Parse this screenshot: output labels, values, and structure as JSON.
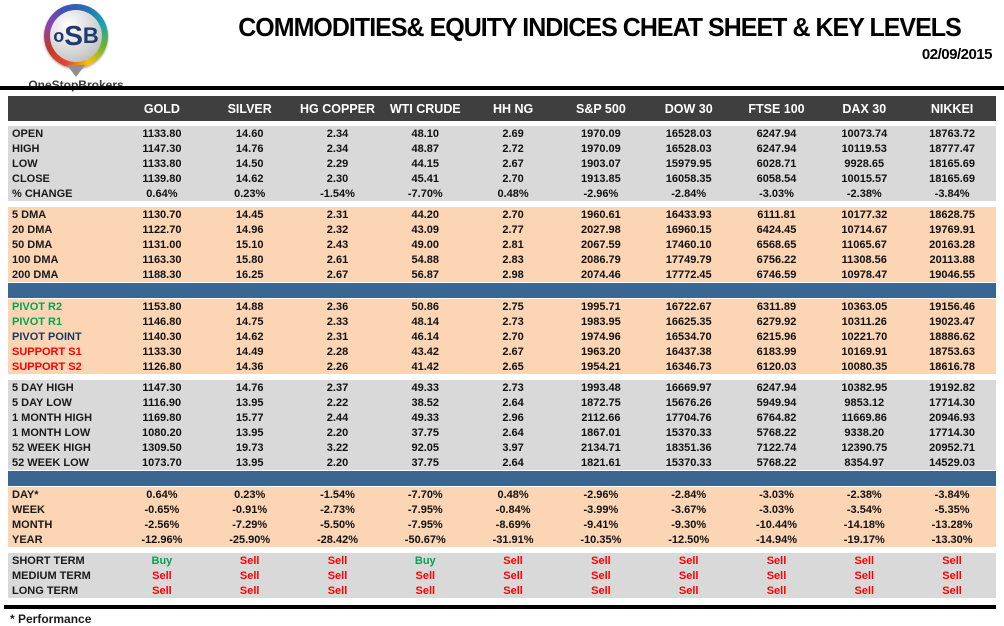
{
  "header": {
    "logo": {
      "l1": "o",
      "l2": "S",
      "l3": "B",
      "name": "OneStopBrokers"
    },
    "title": "COMMODITIES& EQUITY INDICES CHEAT SHEET & KEY LEVELS",
    "date": "02/09/2015"
  },
  "colors": {
    "head_bg": "#3f3f3f",
    "gray_bg": "#d9d9d9",
    "peach_bg": "#fcd5b4",
    "divider_bg": "#3a6692",
    "buy_green": "#00a550",
    "sell_red": "#ff0000",
    "pivot_navy": "#17375e"
  },
  "chart_data": {
    "type": "table",
    "title": "COMMODITIES& EQUITY INDICES CHEAT SHEET & KEY LEVELS",
    "date": "02/09/2015",
    "columns": [
      "GOLD",
      "SILVER",
      "HG COPPER",
      "WTI CRUDE",
      "HH NG",
      "S&P 500",
      "DOW 30",
      "FTSE 100",
      "DAX 30",
      "NIKKEI"
    ],
    "sections": [
      {
        "name": "ohlc",
        "bg": "gray",
        "rows": [
          {
            "label": "OPEN",
            "values": [
              "1133.80",
              "14.60",
              "2.34",
              "48.10",
              "2.69",
              "1970.09",
              "16528.03",
              "6247.94",
              "10073.74",
              "18763.72"
            ]
          },
          {
            "label": "HIGH",
            "values": [
              "1147.30",
              "14.76",
              "2.34",
              "48.87",
              "2.72",
              "1970.09",
              "16528.03",
              "6247.94",
              "10119.53",
              "18777.47"
            ]
          },
          {
            "label": "LOW",
            "values": [
              "1133.80",
              "14.50",
              "2.29",
              "44.15",
              "2.67",
              "1903.07",
              "15979.95",
              "6028.71",
              "9928.65",
              "18165.69"
            ]
          },
          {
            "label": "CLOSE",
            "values": [
              "1139.80",
              "14.62",
              "2.30",
              "45.41",
              "2.70",
              "1913.85",
              "16058.35",
              "6058.54",
              "10015.57",
              "18165.69"
            ]
          },
          {
            "label": "% CHANGE",
            "values": [
              "0.64%",
              "0.23%",
              "-1.54%",
              "-7.70%",
              "0.48%",
              "-2.96%",
              "-2.84%",
              "-3.03%",
              "-2.38%",
              "-3.84%"
            ]
          }
        ]
      },
      {
        "type": "gap"
      },
      {
        "name": "dma",
        "bg": "peach",
        "rows": [
          {
            "label": "5 DMA",
            "values": [
              "1130.70",
              "14.45",
              "2.31",
              "44.20",
              "2.70",
              "1960.61",
              "16433.93",
              "6111.81",
              "10177.32",
              "18628.75"
            ]
          },
          {
            "label": "20 DMA",
            "values": [
              "1122.70",
              "14.96",
              "2.32",
              "43.09",
              "2.77",
              "2027.98",
              "16960.15",
              "6424.45",
              "10714.67",
              "19769.91"
            ]
          },
          {
            "label": "50 DMA",
            "values": [
              "1131.00",
              "15.10",
              "2.43",
              "49.00",
              "2.81",
              "2067.59",
              "17460.10",
              "6568.65",
              "11065.67",
              "20163.28"
            ]
          },
          {
            "label": "100 DMA",
            "values": [
              "1163.30",
              "15.80",
              "2.61",
              "54.88",
              "2.83",
              "2086.79",
              "17749.79",
              "6756.22",
              "11308.56",
              "20113.88"
            ]
          },
          {
            "label": "200 DMA",
            "values": [
              "1188.30",
              "16.25",
              "2.67",
              "56.87",
              "2.98",
              "2074.46",
              "17772.45",
              "6746.59",
              "10978.47",
              "19046.55"
            ]
          }
        ]
      },
      {
        "type": "divider"
      },
      {
        "name": "pivots",
        "bg": "peach",
        "rows": [
          {
            "label": "PIVOT R2",
            "label_color": "green",
            "values": [
              "1153.80",
              "14.88",
              "2.36",
              "50.86",
              "2.75",
              "1995.71",
              "16722.67",
              "6311.89",
              "10363.05",
              "19156.46"
            ]
          },
          {
            "label": "PIVOT R1",
            "label_color": "green",
            "values": [
              "1146.80",
              "14.75",
              "2.33",
              "48.14",
              "2.73",
              "1983.95",
              "16625.35",
              "6279.92",
              "10311.26",
              "19023.47"
            ]
          },
          {
            "label": "PIVOT POINT",
            "label_color": "navy",
            "values": [
              "1140.30",
              "14.62",
              "2.31",
              "46.14",
              "2.70",
              "1974.96",
              "16534.70",
              "6215.96",
              "10221.70",
              "18886.62"
            ]
          },
          {
            "label": "SUPPORT S1",
            "label_color": "red",
            "values": [
              "1133.30",
              "14.49",
              "2.28",
              "43.42",
              "2.67",
              "1963.20",
              "16437.38",
              "6183.99",
              "10169.91",
              "18753.63"
            ]
          },
          {
            "label": "SUPPORT S2",
            "label_color": "red",
            "values": [
              "1126.80",
              "14.36",
              "2.26",
              "41.42",
              "2.65",
              "1954.21",
              "16346.73",
              "6120.03",
              "10080.35",
              "18616.78"
            ]
          }
        ]
      },
      {
        "type": "gap"
      },
      {
        "name": "ranges",
        "bg": "gray",
        "rows": [
          {
            "label": "5 DAY HIGH",
            "values": [
              "1147.30",
              "14.76",
              "2.37",
              "49.33",
              "2.73",
              "1993.48",
              "16669.97",
              "6247.94",
              "10382.95",
              "19192.82"
            ]
          },
          {
            "label": "5 DAY LOW",
            "values": [
              "1116.90",
              "13.95",
              "2.22",
              "38.52",
              "2.64",
              "1872.75",
              "15676.26",
              "5949.94",
              "9853.12",
              "17714.30"
            ]
          },
          {
            "label": "1 MONTH HIGH",
            "values": [
              "1169.80",
              "15.77",
              "2.44",
              "49.33",
              "2.96",
              "2112.66",
              "17704.76",
              "6764.82",
              "11669.86",
              "20946.93"
            ]
          },
          {
            "label": "1 MONTH LOW",
            "values": [
              "1080.20",
              "13.95",
              "2.20",
              "37.75",
              "2.64",
              "1867.01",
              "15370.33",
              "5768.22",
              "9338.20",
              "17714.30"
            ]
          },
          {
            "label": "52 WEEK HIGH",
            "values": [
              "1309.50",
              "19.73",
              "3.22",
              "92.05",
              "3.97",
              "2134.71",
              "18351.36",
              "7122.74",
              "12390.75",
              "20952.71"
            ]
          },
          {
            "label": "52 WEEK LOW",
            "values": [
              "1073.70",
              "13.95",
              "2.20",
              "37.75",
              "2.64",
              "1821.61",
              "15370.33",
              "5768.22",
              "8354.97",
              "14529.03"
            ]
          }
        ]
      },
      {
        "type": "divider"
      },
      {
        "name": "performance",
        "bg": "peach",
        "rows": [
          {
            "label": "DAY*",
            "values": [
              "0.64%",
              "0.23%",
              "-1.54%",
              "-7.70%",
              "0.48%",
              "-2.96%",
              "-2.84%",
              "-3.03%",
              "-2.38%",
              "-3.84%"
            ]
          },
          {
            "label": "WEEK",
            "values": [
              "-0.65%",
              "-0.91%",
              "-2.73%",
              "-7.95%",
              "-0.84%",
              "-3.99%",
              "-3.67%",
              "-3.03%",
              "-3.54%",
              "-5.35%"
            ]
          },
          {
            "label": "MONTH",
            "values": [
              "-2.56%",
              "-7.29%",
              "-5.50%",
              "-7.95%",
              "-8.69%",
              "-9.41%",
              "-9.30%",
              "-10.44%",
              "-14.18%",
              "-13.28%"
            ]
          },
          {
            "label": "YEAR",
            "values": [
              "-12.96%",
              "-25.90%",
              "-28.42%",
              "-50.67%",
              "-31.91%",
              "-10.35%",
              "-12.50%",
              "-14.94%",
              "-19.17%",
              "-13.30%"
            ]
          }
        ]
      },
      {
        "type": "gap"
      },
      {
        "name": "signals",
        "bg": "gray",
        "rows": [
          {
            "label": "SHORT TERM",
            "values": [
              "Buy",
              "Sell",
              "Sell",
              "Buy",
              "Sell",
              "Sell",
              "Sell",
              "Sell",
              "Sell",
              "Sell"
            ]
          },
          {
            "label": "MEDIUM TERM",
            "values": [
              "Sell",
              "Sell",
              "Sell",
              "Sell",
              "Sell",
              "Sell",
              "Sell",
              "Sell",
              "Sell",
              "Sell"
            ]
          },
          {
            "label": "LONG TERM",
            "values": [
              "Sell",
              "Sell",
              "Sell",
              "Sell",
              "Sell",
              "Sell",
              "Sell",
              "Sell",
              "Sell",
              "Sell"
            ]
          }
        ]
      }
    ],
    "footnote": "* Performance"
  }
}
